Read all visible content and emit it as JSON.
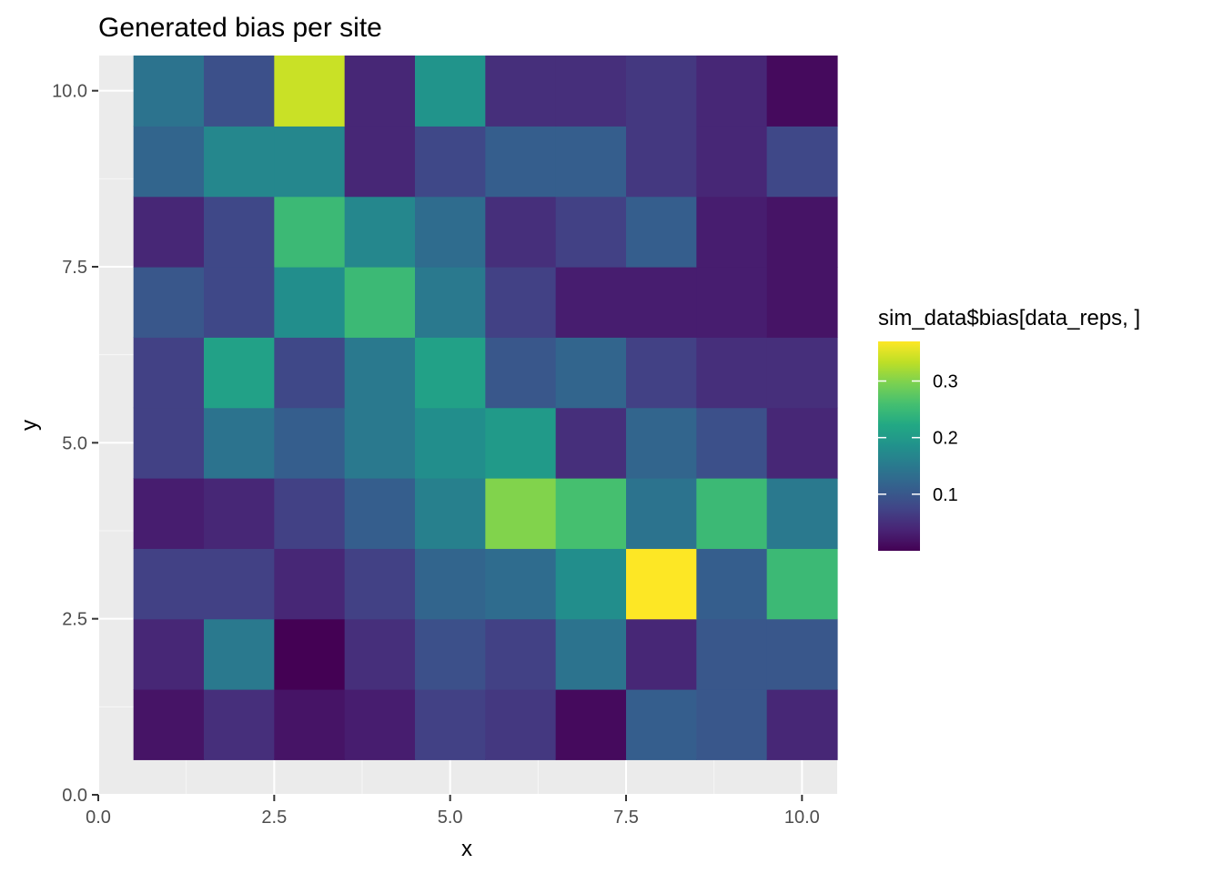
{
  "chart_data": {
    "type": "heatmap",
    "title": "Generated bias per site",
    "xlabel": "x",
    "ylabel": "y",
    "xlim": [
      0,
      10.5
    ],
    "ylim": [
      0,
      10.5
    ],
    "x_ticks": [
      0,
      2.5,
      5,
      7.5,
      10
    ],
    "x_tick_labels": [
      "0.0",
      "2.5",
      "5.0",
      "7.5",
      "10.0"
    ],
    "y_ticks": [
      0,
      2.5,
      5,
      7.5,
      10
    ],
    "y_tick_labels": [
      "0.0",
      "2.5",
      "5.0",
      "7.5",
      "10.0"
    ],
    "grid": true,
    "x": [
      1,
      2,
      3,
      4,
      5,
      6,
      7,
      8,
      9,
      10
    ],
    "y": [
      1,
      2,
      3,
      4,
      5,
      6,
      7,
      8,
      9,
      10
    ],
    "values": [
      [
        0.02,
        0.05,
        0.02,
        0.03,
        0.07,
        0.06,
        0.01,
        0.11,
        0.1,
        0.04
      ],
      [
        0.04,
        0.15,
        0.0,
        0.05,
        0.09,
        0.07,
        0.14,
        0.04,
        0.1,
        0.1
      ],
      [
        0.07,
        0.07,
        0.04,
        0.07,
        0.12,
        0.13,
        0.18,
        0.37,
        0.11,
        0.25
      ],
      [
        0.03,
        0.04,
        0.07,
        0.11,
        0.16,
        0.3,
        0.26,
        0.14,
        0.25,
        0.15
      ],
      [
        0.07,
        0.14,
        0.11,
        0.15,
        0.18,
        0.2,
        0.05,
        0.12,
        0.09,
        0.04
      ],
      [
        0.07,
        0.21,
        0.08,
        0.15,
        0.21,
        0.1,
        0.12,
        0.07,
        0.05,
        0.05
      ],
      [
        0.1,
        0.08,
        0.18,
        0.25,
        0.15,
        0.07,
        0.03,
        0.03,
        0.03,
        0.02
      ],
      [
        0.04,
        0.08,
        0.25,
        0.17,
        0.13,
        0.05,
        0.07,
        0.11,
        0.03,
        0.02
      ],
      [
        0.12,
        0.17,
        0.17,
        0.04,
        0.08,
        0.11,
        0.11,
        0.06,
        0.04,
        0.08
      ],
      [
        0.14,
        0.09,
        0.34,
        0.04,
        0.19,
        0.05,
        0.05,
        0.06,
        0.04,
        0.01
      ]
    ],
    "value_range": [
      0.0,
      0.37
    ],
    "colorscale": "viridis",
    "legend": {
      "title": "sim_data$bias[data_reps, ]",
      "ticks": [
        0.1,
        0.2,
        0.3
      ],
      "tick_labels": [
        "0.1",
        "0.2",
        "0.3"
      ],
      "placement": "right"
    },
    "colors": {
      "panel_background": "#ebebeb",
      "grid_major": "#ffffff",
      "grid_minor": "#f7f7f7"
    }
  }
}
